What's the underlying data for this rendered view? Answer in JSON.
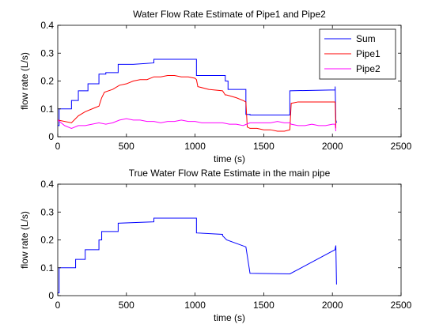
{
  "chart_data": [
    {
      "type": "line",
      "title": "Water Flow Rate Estimate of Pipe1 and Pipe2",
      "xlabel": "time (s)",
      "ylabel": "flow rate (L/s)",
      "xlim": [
        0,
        2500
      ],
      "ylim": [
        0,
        0.4
      ],
      "xticks": [
        0,
        500,
        1000,
        1500,
        2000,
        2500
      ],
      "yticks": [
        0,
        0.1,
        0.2,
        0.3,
        0.4
      ],
      "xtick_labels": [
        "0",
        "500",
        "1000",
        "1500",
        "2000",
        "2500"
      ],
      "ytick_labels": [
        "0",
        "0.1",
        "0.2",
        "0.3",
        "0.4"
      ],
      "grid": false,
      "legend_position": "top-right",
      "series": [
        {
          "name": "Sum",
          "color": "#0000ff",
          "x": [
            0,
            10,
            10,
            100,
            100,
            150,
            150,
            220,
            220,
            300,
            300,
            350,
            350,
            440,
            440,
            550,
            550,
            700,
            700,
            1010,
            1010,
            1220,
            1220,
            1240,
            1240,
            1370,
            1370,
            1400,
            1400,
            1690,
            1690,
            2020,
            2020,
            2025,
            2030
          ],
          "y": [
            0.04,
            0.04,
            0.1,
            0.1,
            0.13,
            0.13,
            0.165,
            0.165,
            0.19,
            0.19,
            0.225,
            0.225,
            0.23,
            0.23,
            0.26,
            0.26,
            0.26,
            0.265,
            0.278,
            0.278,
            0.22,
            0.22,
            0.2,
            0.2,
            0.17,
            0.17,
            0.08,
            0.08,
            0.078,
            0.078,
            0.165,
            0.168,
            0.18,
            0.06,
            0.05
          ]
        },
        {
          "name": "Pipe1",
          "color": "#ff0000",
          "x": [
            0,
            100,
            150,
            200,
            250,
            300,
            320,
            340,
            400,
            450,
            500,
            550,
            600,
            650,
            700,
            750,
            800,
            850,
            900,
            950,
            1000,
            1010,
            1020,
            1100,
            1200,
            1220,
            1230,
            1300,
            1350,
            1370,
            1380,
            1400,
            1450,
            1500,
            1550,
            1600,
            1650,
            1690,
            1700,
            1750,
            1800,
            1850,
            1900,
            1950,
            2000,
            2020,
            2025
          ],
          "y": [
            0.06,
            0.05,
            0.075,
            0.09,
            0.1,
            0.11,
            0.14,
            0.16,
            0.17,
            0.185,
            0.19,
            0.2,
            0.205,
            0.205,
            0.215,
            0.215,
            0.22,
            0.22,
            0.215,
            0.215,
            0.21,
            0.205,
            0.18,
            0.17,
            0.165,
            0.15,
            0.15,
            0.14,
            0.13,
            0.125,
            0.035,
            0.03,
            0.03,
            0.025,
            0.025,
            0.02,
            0.02,
            0.025,
            0.12,
            0.125,
            0.125,
            0.125,
            0.125,
            0.125,
            0.125,
            0.125,
            0.03
          ]
        },
        {
          "name": "Pipe2",
          "color": "#ff00ff",
          "x": [
            0,
            50,
            100,
            150,
            200,
            250,
            300,
            350,
            400,
            450,
            500,
            550,
            600,
            650,
            700,
            750,
            800,
            850,
            900,
            950,
            1000,
            1050,
            1100,
            1150,
            1200,
            1250,
            1300,
            1350,
            1400,
            1450,
            1500,
            1550,
            1600,
            1650,
            1690,
            1700,
            1750,
            1800,
            1850,
            1900,
            1950,
            2000,
            2020,
            2025
          ],
          "y": [
            0.06,
            0.04,
            0.03,
            0.04,
            0.04,
            0.045,
            0.05,
            0.045,
            0.05,
            0.06,
            0.065,
            0.06,
            0.06,
            0.055,
            0.055,
            0.05,
            0.055,
            0.055,
            0.06,
            0.055,
            0.055,
            0.05,
            0.05,
            0.05,
            0.05,
            0.045,
            0.045,
            0.04,
            0.05,
            0.05,
            0.05,
            0.05,
            0.055,
            0.05,
            0.05,
            0.045,
            0.04,
            0.04,
            0.045,
            0.04,
            0.04,
            0.045,
            0.045,
            0.02
          ]
        }
      ]
    },
    {
      "type": "line",
      "title": "True Water Flow Rate Estimate in the main pipe",
      "xlabel": "time (s)",
      "ylabel": "flow rate (L/s)",
      "xlim": [
        0,
        2500
      ],
      "ylim": [
        0,
        0.4
      ],
      "xticks": [
        0,
        500,
        1000,
        1500,
        2000,
        2500
      ],
      "yticks": [
        0,
        0.1,
        0.2,
        0.3,
        0.4
      ],
      "xtick_labels": [
        "0",
        "500",
        "1000",
        "1500",
        "2000",
        "2500"
      ],
      "ytick_labels": [
        "0",
        "0.1",
        "0.2",
        "0.3",
        "0.4"
      ],
      "grid": false,
      "legend_position": "none",
      "series": [
        {
          "color": "#0000ff",
          "x": [
            0,
            10,
            10,
            130,
            130,
            200,
            200,
            300,
            300,
            320,
            320,
            440,
            440,
            700,
            700,
            1010,
            1010,
            1010,
            1200,
            1200,
            1230,
            1230,
            1370,
            1370,
            1400,
            1400,
            1690,
            1690,
            2020,
            2020,
            2025,
            2030
          ],
          "y": [
            0.01,
            0.01,
            0.1,
            0.1,
            0.13,
            0.13,
            0.165,
            0.165,
            0.2,
            0.2,
            0.23,
            0.23,
            0.26,
            0.265,
            0.278,
            0.278,
            0.278,
            0.225,
            0.22,
            0.215,
            0.2,
            0.2,
            0.175,
            0.175,
            0.08,
            0.08,
            0.078,
            0.078,
            0.165,
            0.168,
            0.18,
            0.04
          ]
        }
      ]
    }
  ]
}
